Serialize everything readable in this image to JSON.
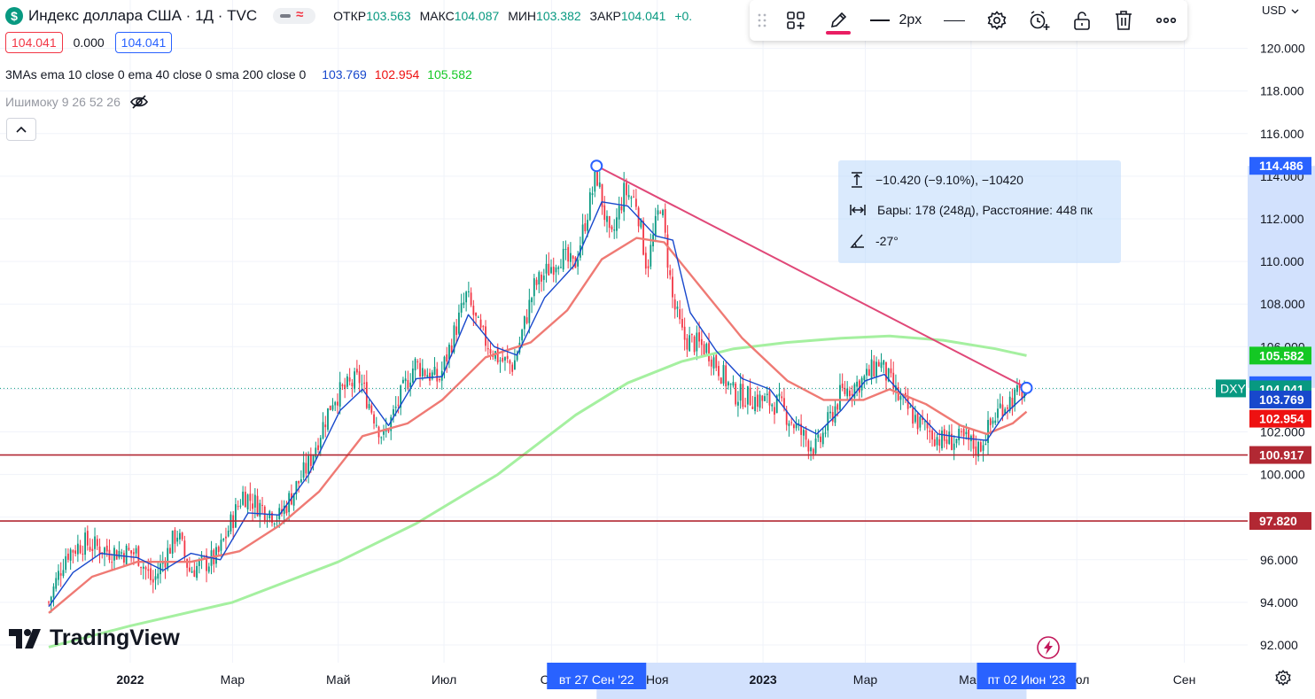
{
  "legend": {
    "symbol_icon": "$",
    "title": "Индекс доллара США · 1Д · TVC",
    "ohlc": [
      {
        "k": "ОТКР",
        "v": "103.563"
      },
      {
        "k": "МАКС",
        "v": "104.087"
      },
      {
        "k": "МИН",
        "v": "103.382"
      },
      {
        "k": "ЗАКР",
        "v": "104.041"
      },
      {
        "k": "",
        "v": "+0."
      }
    ],
    "bid": "104.041",
    "spread": "0.000",
    "ask": "104.041",
    "indicator1": {
      "label": "3MAs ema 10 close 0 ema 40 close 0 sma 200 close 0",
      "v1": "103.769",
      "v2": "102.954",
      "v3": "105.582"
    },
    "indicator2": {
      "label": "Ишимоку 9 26 52 26"
    },
    "collapse_icon": "chevron-up-icon"
  },
  "toolbar": {
    "width_label": "2px",
    "icons": [
      "drag-handle-icon",
      "add-object-icon",
      "pencil-icon",
      "line-style-icon",
      "line-dash-icon",
      "gear-icon",
      "alert-icon",
      "lock-icon",
      "trash-icon",
      "more-icon"
    ],
    "accent": "#e91e63"
  },
  "measure": {
    "change": "−10.420 (−9.10%), −10420",
    "bars": "Бары: 178 (248д), Расстояние: 448 пк",
    "angle": "-27°"
  },
  "currency": "USD",
  "logo": "TradingView",
  "colors": {
    "up": "#089981",
    "down": "#f23645",
    "ema10": "#1848cc",
    "ema40": "#ef7a74",
    "sma200": "#a5f0a0",
    "trend": "#e04878",
    "support": "#b22833",
    "range": "#2962ff"
  },
  "chart_data": {
    "type": "candlestick",
    "symbol": "DXY",
    "ylim": [
      91.2,
      121.8
    ],
    "y_ticks": [
      "92.000",
      "94.000",
      "96.000",
      "98.000",
      "100.000",
      "102.000",
      "104.000",
      "106.000",
      "108.000",
      "110.000",
      "112.000",
      "114.000",
      "116.000",
      "118.000",
      "120.000"
    ],
    "x_ticks": [
      "2022",
      "Мар",
      "Май",
      "Июл",
      "Сен",
      "Ноя",
      "2023",
      "Мар",
      "Май",
      "Июл",
      "Сен"
    ],
    "close_path": [
      [
        "2021-11-15",
        94.0
      ],
      [
        "2021-11-25",
        96.3
      ],
      [
        "2021-12-05",
        96.8
      ],
      [
        "2021-12-20",
        96.4
      ],
      [
        "2022-01-05",
        96.3
      ],
      [
        "2022-01-14",
        94.9
      ],
      [
        "2022-01-28",
        97.3
      ],
      [
        "2022-02-04",
        95.5
      ],
      [
        "2022-02-20",
        96.1
      ],
      [
        "2022-03-07",
        99.1
      ],
      [
        "2022-03-15",
        98.6
      ],
      [
        "2022-03-28",
        98.0
      ],
      [
        "2022-04-14",
        100.5
      ],
      [
        "2022-04-28",
        103.6
      ],
      [
        "2022-05-13",
        104.5
      ],
      [
        "2022-05-27",
        101.7
      ],
      [
        "2022-06-14",
        105.2
      ],
      [
        "2022-06-28",
        104.4
      ],
      [
        "2022-07-14",
        108.4
      ],
      [
        "2022-07-22",
        106.6
      ],
      [
        "2022-08-02",
        105.4
      ],
      [
        "2022-08-10",
        105.1
      ],
      [
        "2022-08-22",
        108.8
      ],
      [
        "2022-09-06",
        110.3
      ],
      [
        "2022-09-14",
        109.7
      ],
      [
        "2022-09-27",
        114.1
      ],
      [
        "2022-10-05",
        110.8
      ],
      [
        "2022-10-13",
        113.3
      ],
      [
        "2022-10-20",
        112.8
      ],
      [
        "2022-10-26",
        109.7
      ],
      [
        "2022-11-03",
        112.8
      ],
      [
        "2022-11-10",
        108.1
      ],
      [
        "2022-11-16",
        106.4
      ],
      [
        "2022-11-30",
        105.9
      ],
      [
        "2022-12-15",
        103.8
      ],
      [
        "2022-12-30",
        103.5
      ],
      [
        "2023-01-10",
        103.3
      ],
      [
        "2023-01-25",
        101.7
      ],
      [
        "2023-02-01",
        101.2
      ],
      [
        "2023-02-15",
        103.8
      ],
      [
        "2023-03-01",
        104.5
      ],
      [
        "2023-03-09",
        105.3
      ],
      [
        "2023-03-20",
        103.6
      ],
      [
        "2023-04-01",
        102.4
      ],
      [
        "2023-04-14",
        101.6
      ],
      [
        "2023-04-28",
        101.6
      ],
      [
        "2023-05-05",
        101.2
      ],
      [
        "2023-05-18",
        103.2
      ],
      [
        "2023-06-02",
        104.0
      ]
    ],
    "ema10_path": [
      [
        "2021-11-15",
        93.8
      ],
      [
        "2021-11-29",
        95.4
      ],
      [
        "2021-12-15",
        96.3
      ],
      [
        "2022-01-05",
        96.1
      ],
      [
        "2022-01-20",
        95.5
      ],
      [
        "2022-02-05",
        96.3
      ],
      [
        "2022-02-22",
        96.0
      ],
      [
        "2022-03-10",
        98.2
      ],
      [
        "2022-03-28",
        98.1
      ],
      [
        "2022-04-14",
        100.0
      ],
      [
        "2022-05-02",
        103.0
      ],
      [
        "2022-05-15",
        104.0
      ],
      [
        "2022-05-30",
        102.3
      ],
      [
        "2022-06-15",
        104.5
      ],
      [
        "2022-06-30",
        104.6
      ],
      [
        "2022-07-15",
        107.5
      ],
      [
        "2022-07-30",
        106.0
      ],
      [
        "2022-08-12",
        105.6
      ],
      [
        "2022-08-28",
        108.3
      ],
      [
        "2022-09-14",
        109.8
      ],
      [
        "2022-09-30",
        112.8
      ],
      [
        "2022-10-15",
        112.6
      ],
      [
        "2022-10-31",
        111.2
      ],
      [
        "2022-11-10",
        111.0
      ],
      [
        "2022-11-20",
        107.6
      ],
      [
        "2022-12-05",
        105.8
      ],
      [
        "2022-12-20",
        104.5
      ],
      [
        "2023-01-05",
        104.0
      ],
      [
        "2023-01-20",
        102.4
      ],
      [
        "2023-02-01",
        101.9
      ],
      [
        "2023-02-15",
        103.0
      ],
      [
        "2023-03-01",
        104.4
      ],
      [
        "2023-03-12",
        104.7
      ],
      [
        "2023-03-28",
        103.2
      ],
      [
        "2023-04-12",
        101.9
      ],
      [
        "2023-04-28",
        101.7
      ],
      [
        "2023-05-10",
        101.6
      ],
      [
        "2023-05-20",
        102.8
      ],
      [
        "2023-06-02",
        103.77
      ]
    ],
    "ema40_path": [
      [
        "2021-11-15",
        93.5
      ],
      [
        "2021-12-10",
        95.2
      ],
      [
        "2022-01-05",
        95.9
      ],
      [
        "2022-02-05",
        95.9
      ],
      [
        "2022-03-05",
        96.4
      ],
      [
        "2022-03-28",
        97.6
      ],
      [
        "2022-04-20",
        99.2
      ],
      [
        "2022-05-15",
        101.8
      ],
      [
        "2022-06-10",
        102.4
      ],
      [
        "2022-06-30",
        103.5
      ],
      [
        "2022-07-25",
        105.5
      ],
      [
        "2022-08-20",
        106.2
      ],
      [
        "2022-09-10",
        107.7
      ],
      [
        "2022-09-30",
        110.1
      ],
      [
        "2022-10-20",
        111.1
      ],
      [
        "2022-11-05",
        110.9
      ],
      [
        "2022-11-25",
        108.9
      ],
      [
        "2022-12-20",
        106.4
      ],
      [
        "2023-01-15",
        104.4
      ],
      [
        "2023-02-05",
        103.5
      ],
      [
        "2023-02-28",
        103.5
      ],
      [
        "2023-03-15",
        104.0
      ],
      [
        "2023-04-05",
        103.3
      ],
      [
        "2023-04-25",
        102.3
      ],
      [
        "2023-05-10",
        101.9
      ],
      [
        "2023-05-25",
        102.4
      ],
      [
        "2023-06-02",
        102.95
      ]
    ],
    "sma200_path": [
      [
        "2021-11-15",
        91.9
      ],
      [
        "2022-01-01",
        92.9
      ],
      [
        "2022-03-01",
        94.0
      ],
      [
        "2022-05-01",
        95.9
      ],
      [
        "2022-06-15",
        97.7
      ],
      [
        "2022-08-01",
        100.0
      ],
      [
        "2022-09-15",
        102.8
      ],
      [
        "2022-10-15",
        104.3
      ],
      [
        "2022-11-15",
        105.3
      ],
      [
        "2022-12-15",
        105.9
      ],
      [
        "2023-01-15",
        106.2
      ],
      [
        "2023-02-15",
        106.4
      ],
      [
        "2023-03-15",
        106.5
      ],
      [
        "2023-04-15",
        106.3
      ],
      [
        "2023-05-15",
        105.9
      ],
      [
        "2023-06-02",
        105.58
      ]
    ],
    "trendline": {
      "from": [
        "2022-09-27",
        114.486
      ],
      "to": [
        "2023-06-02",
        104.066
      ]
    },
    "support_levels": [
      100.917,
      97.82
    ],
    "current": 104.041,
    "date_range": {
      "start_label": "вт 27 Сен '22",
      "end_label": "пт 02 Июн '23"
    },
    "price_badges": [
      {
        "value": "114.486",
        "color": "#2962ff"
      },
      {
        "value": "105.582",
        "color": "#14c824"
      },
      {
        "value": "104.066",
        "color": "#2962ff"
      },
      {
        "value": "104.041",
        "color": "#089981"
      },
      {
        "value": "103.769",
        "color": "#1848cc"
      },
      {
        "value": "102.954",
        "color": "#ee1111"
      },
      {
        "value": "100.917",
        "color": "#b22833"
      },
      {
        "value": "97.820",
        "color": "#b22833"
      }
    ]
  }
}
